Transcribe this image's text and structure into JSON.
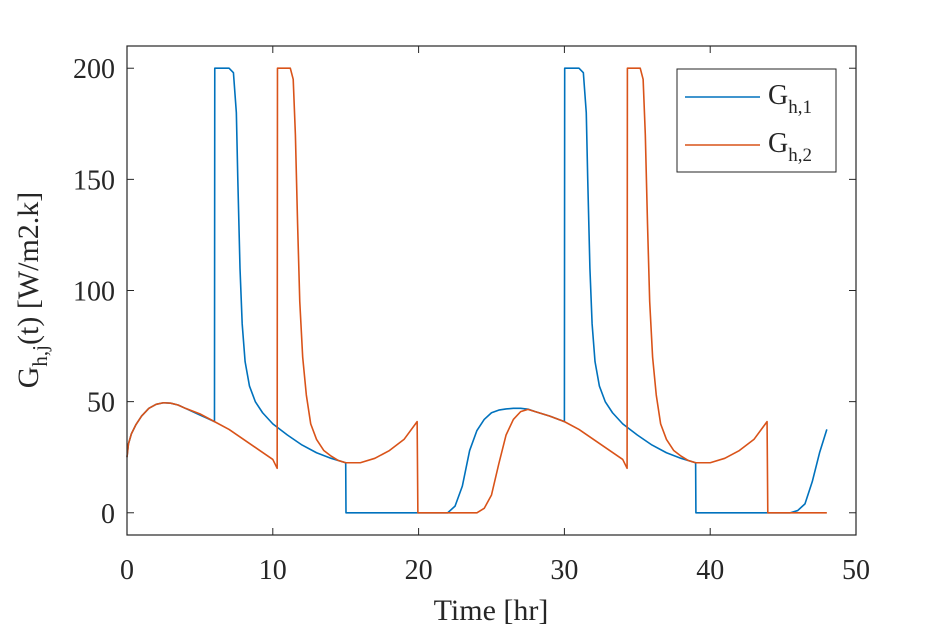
{
  "chart_data": {
    "type": "line",
    "xlabel": "Time [hr]",
    "ylabel": {
      "text": "G",
      "subscript": "h,j",
      "suffix": "(t) [W/m2.k]"
    },
    "xlim": [
      0,
      50
    ],
    "ylim": [
      -10,
      210
    ],
    "xticks": [
      0,
      10,
      20,
      30,
      40,
      50
    ],
    "yticks": [
      0,
      50,
      100,
      150,
      200
    ],
    "grid": false,
    "legend_position": "top-right",
    "series": [
      {
        "name": "G",
        "subscript": "h,1",
        "color": "#0072BD",
        "points": [
          [
            0,
            25
          ],
          [
            0.1,
            31
          ],
          [
            0.3,
            35.5
          ],
          [
            0.6,
            39.5
          ],
          [
            1,
            43.5
          ],
          [
            1.5,
            47
          ],
          [
            2,
            48.8
          ],
          [
            2.5,
            49.5
          ],
          [
            3,
            49.3
          ],
          [
            3.5,
            48.5
          ],
          [
            4,
            47
          ],
          [
            4.5,
            45.5
          ],
          [
            5,
            44
          ],
          [
            5.5,
            42.5
          ],
          [
            6,
            41
          ],
          [
            6.02,
            200
          ],
          [
            7,
            200
          ],
          [
            7.3,
            198
          ],
          [
            7.5,
            180
          ],
          [
            7.6,
            150
          ],
          [
            7.75,
            110
          ],
          [
            7.9,
            85
          ],
          [
            8.1,
            68
          ],
          [
            8.4,
            57
          ],
          [
            8.8,
            50
          ],
          [
            9.3,
            45
          ],
          [
            10,
            40
          ],
          [
            11,
            35
          ],
          [
            12,
            30.5
          ],
          [
            13,
            27
          ],
          [
            14,
            24.5
          ],
          [
            15,
            22.5
          ],
          [
            15.02,
            0
          ],
          [
            22,
            0
          ],
          [
            22.5,
            3
          ],
          [
            23,
            12
          ],
          [
            23.5,
            28
          ],
          [
            24,
            37
          ],
          [
            24.5,
            42
          ],
          [
            25,
            45
          ],
          [
            25.5,
            46.2
          ],
          [
            26,
            46.7
          ],
          [
            26.5,
            47
          ],
          [
            27,
            47
          ],
          [
            27.5,
            46.6
          ],
          [
            28,
            45.5
          ],
          [
            29,
            43.5
          ],
          [
            30,
            41
          ],
          [
            30.02,
            200
          ],
          [
            31,
            200
          ],
          [
            31.3,
            198
          ],
          [
            31.5,
            180
          ],
          [
            31.6,
            150
          ],
          [
            31.75,
            110
          ],
          [
            31.9,
            85
          ],
          [
            32.1,
            68
          ],
          [
            32.4,
            57
          ],
          [
            32.8,
            50
          ],
          [
            33.3,
            45
          ],
          [
            34,
            40
          ],
          [
            35,
            35
          ],
          [
            36,
            30.5
          ],
          [
            37,
            27
          ],
          [
            38,
            24.5
          ],
          [
            39,
            22.5
          ],
          [
            39.02,
            0
          ],
          [
            45.5,
            0
          ],
          [
            46,
            1
          ],
          [
            46.5,
            4
          ],
          [
            47,
            14
          ],
          [
            47.5,
            27
          ],
          [
            48,
            37.5
          ]
        ]
      },
      {
        "name": "G",
        "subscript": "h,2",
        "color": "#D95319",
        "points": [
          [
            0,
            25
          ],
          [
            0.1,
            31
          ],
          [
            0.3,
            35.5
          ],
          [
            0.6,
            39.5
          ],
          [
            1,
            43.5
          ],
          [
            1.5,
            47
          ],
          [
            2,
            48.8
          ],
          [
            2.5,
            49.5
          ],
          [
            3,
            49.3
          ],
          [
            3.5,
            48.5
          ],
          [
            4,
            47
          ],
          [
            5,
            44.5
          ],
          [
            6,
            41
          ],
          [
            7,
            37.5
          ],
          [
            8,
            33
          ],
          [
            9,
            28.5
          ],
          [
            10,
            24
          ],
          [
            10.3,
            20
          ],
          [
            10.32,
            200
          ],
          [
            11.2,
            200
          ],
          [
            11.4,
            195
          ],
          [
            11.55,
            170
          ],
          [
            11.7,
            130
          ],
          [
            11.85,
            95
          ],
          [
            12.05,
            70
          ],
          [
            12.3,
            53
          ],
          [
            12.6,
            40
          ],
          [
            13,
            33
          ],
          [
            13.5,
            28
          ],
          [
            14,
            25.5
          ],
          [
            14.5,
            23.5
          ],
          [
            15,
            22.5
          ],
          [
            16,
            22.5
          ],
          [
            17,
            24.5
          ],
          [
            18,
            28
          ],
          [
            19,
            33
          ],
          [
            19.9,
            41
          ],
          [
            19.95,
            0
          ],
          [
            24,
            0
          ],
          [
            24.5,
            2
          ],
          [
            25,
            8
          ],
          [
            25.5,
            22
          ],
          [
            26,
            35
          ],
          [
            26.5,
            42
          ],
          [
            27,
            45.5
          ],
          [
            27.5,
            46.5
          ],
          [
            28,
            45.5
          ],
          [
            29,
            43.5
          ],
          [
            30,
            41
          ],
          [
            31,
            37.5
          ],
          [
            32,
            33
          ],
          [
            33,
            28.5
          ],
          [
            34,
            24
          ],
          [
            34.3,
            20
          ],
          [
            34.32,
            200
          ],
          [
            35.2,
            200
          ],
          [
            35.4,
            195
          ],
          [
            35.55,
            170
          ],
          [
            35.7,
            130
          ],
          [
            35.85,
            95
          ],
          [
            36.05,
            70
          ],
          [
            36.3,
            53
          ],
          [
            36.6,
            40
          ],
          [
            37,
            33
          ],
          [
            37.5,
            28
          ],
          [
            38,
            25.5
          ],
          [
            38.5,
            23.5
          ],
          [
            39,
            22.5
          ],
          [
            40,
            22.5
          ],
          [
            41,
            24.5
          ],
          [
            42,
            28
          ],
          [
            43,
            33
          ],
          [
            43.9,
            41
          ],
          [
            43.95,
            0
          ],
          [
            48,
            0
          ]
        ]
      }
    ]
  }
}
